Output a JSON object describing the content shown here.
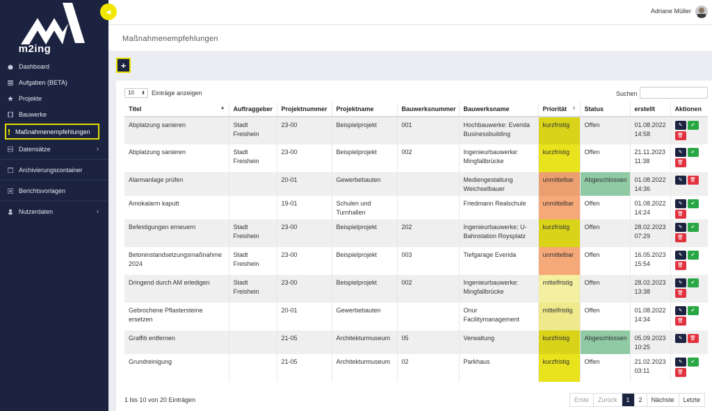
{
  "app": {
    "logo_text": "m2ing"
  },
  "user": {
    "name": "Adriane Müller"
  },
  "page": {
    "title": "Maßnahmenempfehlungen",
    "add_label": "+"
  },
  "sidebar": {
    "items": [
      {
        "label": "Dashboard",
        "icon": "dashboard-icon"
      },
      {
        "label": "Aufgaben (BETA)",
        "icon": "tasks-icon"
      },
      {
        "label": "Projekte",
        "icon": "star-icon"
      },
      {
        "label": "Bauwerke",
        "icon": "building-icon"
      },
      {
        "label": "Maßnahmenempfehlungen",
        "icon": "exclamation-icon",
        "active": true
      },
      {
        "label": "Datensätze",
        "icon": "database-icon",
        "arrow": "›"
      },
      {
        "label": "Archivierungscontainer",
        "icon": "archive-icon"
      },
      {
        "label": "Berichtsvorlagen",
        "icon": "report-icon"
      },
      {
        "label": "Nutzerdaten",
        "icon": "user-icon",
        "arrow": "›"
      }
    ]
  },
  "table_controls": {
    "length_value": "10",
    "length_label": "Einträge anzeigen",
    "search_label": "Suchen",
    "info": "1 bis 10 von 20 Einträgen"
  },
  "columns": [
    "Titel",
    "Auftraggeber",
    "Projektnummer",
    "Projektname",
    "Bauwerksnummer",
    "Bauwerksname",
    "Priorität",
    "Status",
    "erstellt",
    "Aktionen"
  ],
  "rows": [
    {
      "titel": "Abplatzung sanieren",
      "auftraggeber": "Stadt Freishein",
      "projektnummer": "23-00",
      "projektname": "Beispielprojekt",
      "bauwerksnummer": "001",
      "bauwerksname": "Hochbauwerke: Everida Businessbuilding",
      "prioritaet": "kurzfristig",
      "status": "Offen",
      "erstellt": "01.08.2022 14:58"
    },
    {
      "titel": "Abplatzung sanieren",
      "auftraggeber": "Stadt Freishein",
      "projektnummer": "23-00",
      "projektname": "Beispielprojekt",
      "bauwerksnummer": "002",
      "bauwerksname": "Ingenieurbauwerke: Mingfallbrücke",
      "prioritaet": "kurzfristig",
      "status": "Offen",
      "erstellt": "21.11.2023 11:38"
    },
    {
      "titel": "Alarmanlage prüfen",
      "auftraggeber": "",
      "projektnummer": "20-01",
      "projektname": "Gewerbebauten",
      "bauwerksnummer": "",
      "bauwerksname": "Mediengestaltung Weichselbauer",
      "prioritaet": "unmittelbar",
      "status": "Abgeschlossen",
      "erstellt": "01.08.2022 14:36"
    },
    {
      "titel": "Amokalarm kaputt",
      "auftraggeber": "",
      "projektnummer": "19-01",
      "projektname": "Schulen und Turnhallen",
      "bauwerksnummer": "",
      "bauwerksname": "Friedmann Realschule",
      "prioritaet": "unmittelbar",
      "status": "Offen",
      "erstellt": "01.08.2022 14:24"
    },
    {
      "titel": "Befestigungen erneuern",
      "auftraggeber": "Stadt Freishein",
      "projektnummer": "23-00",
      "projektname": "Beispielprojekt",
      "bauwerksnummer": "202",
      "bauwerksname": "Ingenieurbauwerke; U-Bahnstation Roysplatz",
      "prioritaet": "kurzfristig",
      "status": "Offen",
      "erstellt": "28.02.2023 07:29"
    },
    {
      "titel": "Betoninstandsetzungsmaßnahme 2024",
      "auftraggeber": "Stadt Freishein",
      "projektnummer": "23-00",
      "projektname": "Beispielprojekt",
      "bauwerksnummer": "003",
      "bauwerksname": "Tiefgarage Everida",
      "prioritaet": "unmittelbar",
      "status": "Offen",
      "erstellt": "16.05.2023 15:54"
    },
    {
      "titel": "Dringend durch AM erledigen",
      "auftraggeber": "Stadt Freishein",
      "projektnummer": "23-00",
      "projektname": "Beispielprojekt",
      "bauwerksnummer": "002",
      "bauwerksname": "Ingenieurbauwerke: Mingfallbrücke",
      "prioritaet": "mittelfristig",
      "status": "Offen",
      "erstellt": "28.02.2023 13:38"
    },
    {
      "titel": "Gebrochene Pflastersteine ersetzen",
      "auftraggeber": "",
      "projektnummer": "20-01",
      "projektname": "Gewerbebauten",
      "bauwerksnummer": "",
      "bauwerksname": "Onur Facilitymanagement",
      "prioritaet": "mittelfristig",
      "status": "Offen",
      "erstellt": "01.08.2022 14:34"
    },
    {
      "titel": "Graffiti entfernen",
      "auftraggeber": "",
      "projektnummer": "21-05",
      "projektname": "Architekturmuseum",
      "bauwerksnummer": "05",
      "bauwerksname": "Verwaltung",
      "prioritaet": "kurzfristig",
      "status": "Abgeschlossen",
      "erstellt": "05.09.2023 10:25"
    },
    {
      "titel": "Grundreinigung",
      "auftraggeber": "",
      "projektnummer": "21-05",
      "projektname": "Architekturmuseum",
      "bauwerksnummer": "02",
      "bauwerksname": "Parkhaus",
      "prioritaet": "kurzfristig",
      "status": "Offen",
      "erstellt": "21.02.2023 03:11"
    }
  ],
  "pagination": {
    "first": "Erste",
    "prev": "Zurück",
    "pages": [
      "1",
      "2"
    ],
    "next": "Nächste",
    "last": "Letzte"
  },
  "colors": {
    "sidebar": "#1c2340",
    "highlight": "#e8e000",
    "kurzfristig": "#e8e31c",
    "unmittelbar": "#f5a878",
    "mittelfristig": "#eee98a",
    "abgeschlossen": "#8fcaa4"
  }
}
